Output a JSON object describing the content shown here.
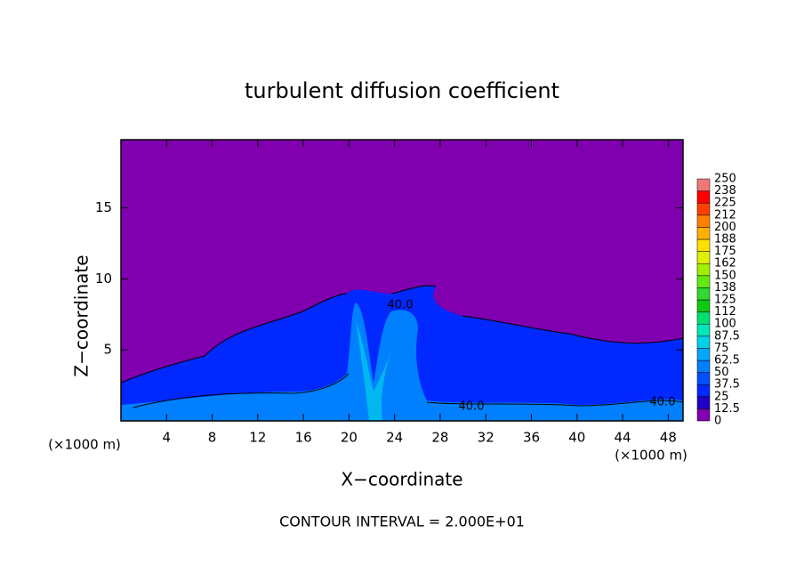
{
  "chart_data": {
    "type": "contour",
    "title": "turbulent diffusion coefficient",
    "xlabel": "X−coordinate",
    "ylabel": "Z−coordinate",
    "x_unit": "(×1000 m)",
    "x_unit_right": "(×1000 m)",
    "annotation": "CONTOUR INTERVAL = 2.000E+01",
    "xlim": [
      0,
      49.3
    ],
    "ylim": [
      0,
      19.8
    ],
    "xticks": [
      4,
      8,
      12,
      16,
      20,
      24,
      28,
      32,
      36,
      40,
      44,
      48
    ],
    "yticks": [
      5,
      10,
      15
    ],
    "contour_labels": [
      "40.0",
      "40.0",
      "40.0"
    ],
    "colorbar": {
      "levels": [
        0,
        12.5,
        25,
        37.5,
        50,
        62.5,
        75,
        87.5,
        100,
        112,
        125,
        138,
        150,
        162,
        175,
        188,
        200,
        212,
        225,
        238,
        250
      ],
      "colors": [
        "#8000b0",
        "#2000c8",
        "#0028ff",
        "#0050ff",
        "#0080ff",
        "#00a8ff",
        "#00d0e8",
        "#00e8b8",
        "#00e070",
        "#10c810",
        "#30d830",
        "#60ea10",
        "#a0f000",
        "#e0f000",
        "#ffe000",
        "#ffb000",
        "#ff8000",
        "#ff4000",
        "#ff0000",
        "#f07878"
      ]
    }
  }
}
